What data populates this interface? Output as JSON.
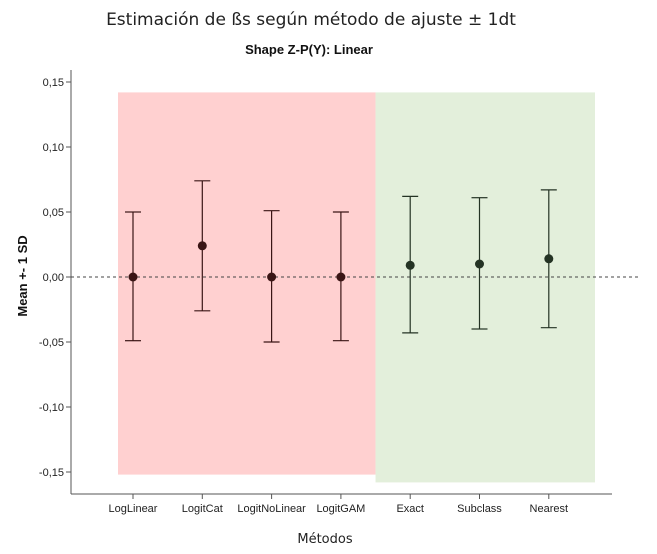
{
  "chart_data": {
    "type": "errorbar",
    "title": "Estimación de ßs según método de ajuste ± 1dt",
    "subtitle": "Shape Z-P(Y): Linear",
    "xlabel": "Métodos",
    "ylabel": "Mean +- 1 SD",
    "ylim": [
      -0.165,
      0.165
    ],
    "yticks": [
      "0,15",
      "0,10",
      "0,05",
      "0,00",
      "-0,05",
      "-0,10",
      "-0,15"
    ],
    "ytick_values": [
      0.15,
      0.1,
      0.05,
      0.0,
      -0.05,
      -0.1,
      -0.15
    ],
    "reference_line": 0.0,
    "categories": [
      "LogLinear",
      "LogitCat",
      "LogitNoLinear",
      "LogitGAM",
      "Exact",
      "Subclass",
      "Nearest"
    ],
    "means": [
      0.0,
      0.024,
      0.0,
      0.0,
      0.009,
      0.01,
      0.014
    ],
    "upper": [
      0.05,
      0.074,
      0.051,
      0.05,
      0.062,
      0.061,
      0.067
    ],
    "lower": [
      -0.049,
      -0.026,
      -0.05,
      -0.049,
      -0.043,
      -0.04,
      -0.039
    ],
    "groups": [
      {
        "from": 0,
        "to": 3,
        "ylim": [
          -0.152,
          0.142
        ],
        "color": "#ffd0d0",
        "mark_color": "#3a1515"
      },
      {
        "from": 4,
        "to": 6,
        "ylim": [
          -0.158,
          0.142
        ],
        "color": "#e3efdb",
        "mark_color": "#243324"
      }
    ],
    "grid": false
  }
}
